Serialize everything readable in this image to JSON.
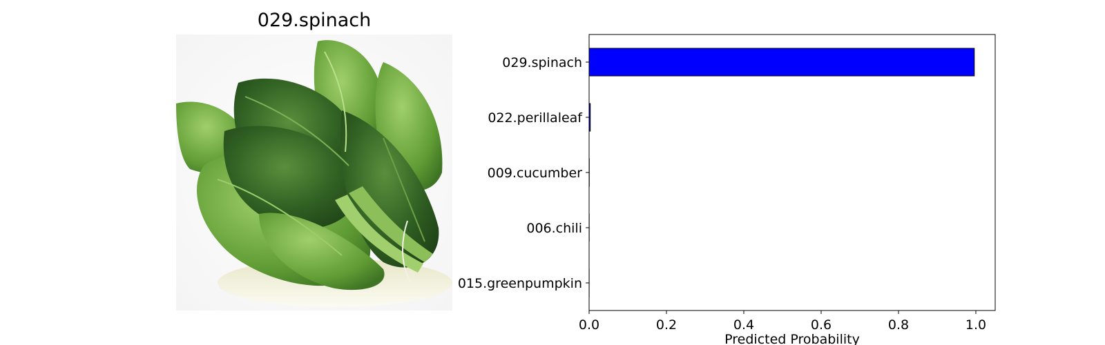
{
  "image_panel": {
    "title": "029.spinach"
  },
  "chart_data": {
    "type": "bar",
    "orientation": "horizontal",
    "categories": [
      "029.spinach",
      "022.perillaleaf",
      "009.cucumber",
      "006.chili",
      "015.greenpumpkin"
    ],
    "values": [
      0.996,
      0.003,
      0.0005,
      0.0003,
      0.0002
    ],
    "xlabel": "Predicted Probability",
    "ylabel": "",
    "xlim": [
      0,
      1.05
    ],
    "xticks": [
      "0.0",
      "0.2",
      "0.4",
      "0.6",
      "0.8",
      "1.0"
    ],
    "bar_color": "#0000ff",
    "bar_edge_color": "#000000",
    "grid": false
  }
}
